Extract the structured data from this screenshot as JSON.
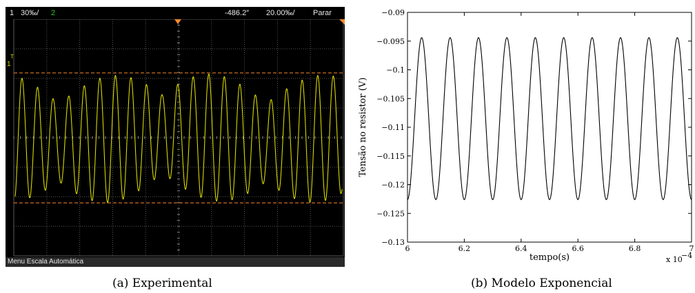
{
  "scope": {
    "ch1_label": "1",
    "ch1_scale": "30‰/",
    "ch2_label": "2",
    "time_offset": "-486.2″",
    "time_scale": "20.00‰/",
    "run_state": "Parar",
    "menu_text": "Menu Escala Automática",
    "trigger_marker": "T",
    "channel_marker": "1",
    "colors": {
      "trace": "#d8d800",
      "cursor": "#ff8a2a",
      "ch2": "#22cc22",
      "grid": "#5a5a5a"
    }
  },
  "captions": {
    "left": "(a) Experimental",
    "right": "(b) Modelo Exponencial"
  },
  "chart_data": [
    {
      "type": "line",
      "title": "",
      "xlabel": "",
      "ylabel": "",
      "description": "oscilloscope capture, beating sinusoid with two horizontal cursors",
      "grid": true,
      "cycles_visible": 21
    },
    {
      "type": "line",
      "title": "",
      "xlabel": "tempo(s)",
      "ylabel": "Tensão no resistor (V)",
      "x_multiplier_label": "x 10",
      "x_multiplier_exponent": "−4",
      "xlim": [
        6,
        7
      ],
      "ylim": [
        -0.13,
        -0.09
      ],
      "xticks": [
        "6",
        "6.2",
        "6.4",
        "6.6",
        "6.8",
        "7"
      ],
      "yticks": [
        "−0.09",
        "−0.095",
        "−0.1",
        "−0.105",
        "−0.11",
        "−0.115",
        "−0.12",
        "−0.125",
        "−0.13"
      ],
      "grid": false,
      "series": [
        {
          "center": -0.1085,
          "amplitude": 0.0141,
          "period": 0.1,
          "first_peak_x": 6.05
        }
      ]
    }
  ]
}
